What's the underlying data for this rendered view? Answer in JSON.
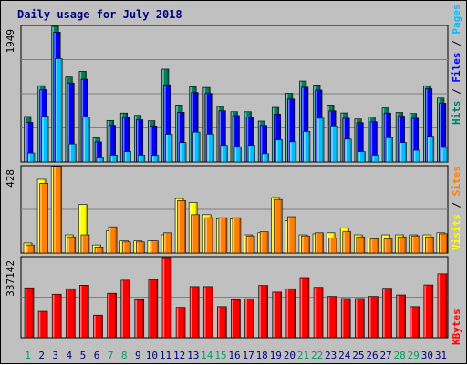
{
  "chart_data": {
    "type": "bar",
    "title": "Daily usage for July 2018",
    "categories": [
      "1",
      "2",
      "3",
      "4",
      "5",
      "6",
      "7",
      "8",
      "9",
      "10",
      "11",
      "12",
      "13",
      "14",
      "15",
      "16",
      "17",
      "18",
      "19",
      "20",
      "21",
      "22",
      "23",
      "24",
      "25",
      "26",
      "27",
      "28",
      "29",
      "30",
      "31"
    ],
    "weekend_days": [
      "1",
      "7",
      "8",
      "14",
      "15",
      "21",
      "22",
      "28",
      "29"
    ],
    "panels": [
      {
        "name": "hits-files-pages",
        "ymax_label": "1949",
        "ylim": [
          0,
          1949
        ],
        "series": [
          {
            "name": "Hits",
            "color": "#008060",
            "values": [
              655,
              1097,
              1949,
              1221,
              1303,
              348,
              598,
              704,
              671,
              594,
              1335,
              820,
              1080,
              1072,
              798,
              723,
              723,
              589,
              785,
              988,
              1164,
              1108,
              819,
              706,
              619,
              647,
              778,
              713,
              698,
              1096,
              919
            ]
          },
          {
            "name": "Files",
            "color": "#0000ff",
            "values": [
              570,
              1040,
              1866,
              1136,
              1190,
              290,
              528,
              640,
              608,
              519,
              1109,
              715,
              1000,
              986,
              737,
              668,
              649,
              527,
              688,
              905,
              1075,
              1034,
              735,
              631,
              566,
              580,
              704,
              660,
              630,
              1052,
              845
            ]
          },
          {
            "name": "Pages",
            "color": "#00c0ff",
            "values": [
              130,
              660,
              1486,
              260,
              650,
              60,
              100,
              150,
              100,
              95,
              400,
              280,
              430,
              402,
              240,
              220,
              240,
              120,
              320,
              290,
              440,
              630,
              520,
              330,
              150,
              100,
              350,
              280,
              170,
              370,
              210
            ]
          }
        ]
      },
      {
        "name": "visits-sites",
        "ymax_label": "428",
        "ylim": [
          0,
          428
        ],
        "series": [
          {
            "name": "Visits",
            "color": "#ffff00",
            "values": [
              50,
              365,
              428,
              90,
              240,
              40,
              110,
              60,
              60,
              60,
              90,
              270,
              250,
              190,
              170,
              170,
              90,
              100,
              275,
              160,
              90,
              95,
              100,
              125,
              90,
              75,
              90,
              90,
              90,
              90,
              100
            ]
          },
          {
            "name": "Sites",
            "color": "#ff8000",
            "values": [
              40,
              345,
              428,
              80,
              90,
              30,
              130,
              55,
              55,
              60,
              100,
              260,
              190,
              175,
              175,
              175,
              85,
              105,
              265,
              180,
              85,
              100,
              75,
              105,
              80,
              70,
              70,
              80,
              85,
              80,
              95
            ]
          }
        ]
      },
      {
        "name": "kbytes",
        "ymax_label": "337142",
        "ylim": [
          0,
          337142
        ],
        "series": [
          {
            "name": "KBytes",
            "color": "#ff0000",
            "values": [
              210000,
              111000,
              183000,
              206000,
              221000,
              95000,
              187000,
              242000,
              160000,
              245000,
              337142,
              128000,
              215000,
              215000,
              131000,
              160000,
              164000,
              220000,
              192000,
              206000,
              253000,
              212000,
              174000,
              165000,
              165000,
              174000,
              208000,
              180000,
              131000,
              222000,
              269000
            ]
          }
        ]
      }
    ],
    "right_labels": {
      "panel1": [
        {
          "text": "Hits",
          "color": "#008060"
        },
        {
          "text": " / ",
          "color": "#000000"
        },
        {
          "text": "Files",
          "color": "#0000ff"
        },
        {
          "text": " / ",
          "color": "#000000"
        },
        {
          "text": "Pages",
          "color": "#00c0ff"
        }
      ],
      "panel2": [
        {
          "text": "Visits",
          "color": "#ffff00"
        },
        {
          "text": " / ",
          "color": "#000000"
        },
        {
          "text": "Sites",
          "color": "#ff8000"
        }
      ],
      "panel3": [
        {
          "text": "KBytes",
          "color": "#ff0000"
        }
      ]
    },
    "weekday_label_color": "#008080",
    "weekend_label_color": "#00a060",
    "background_color": "#c0c0c0",
    "grid": true
  }
}
